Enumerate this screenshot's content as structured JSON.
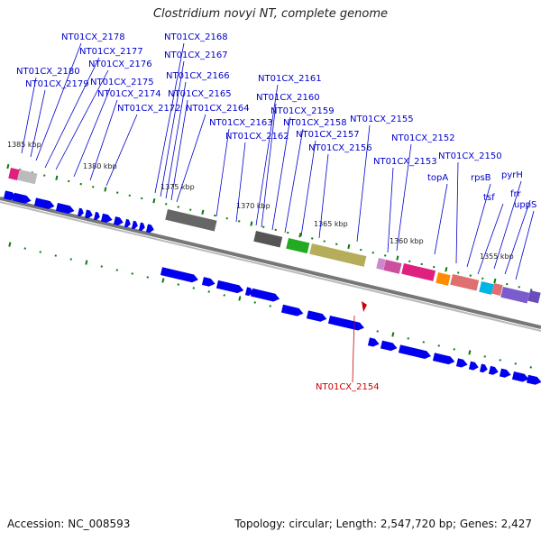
{
  "title": "Clostridium novyi NT, complete genome",
  "footer": {
    "accession": "Accession: NC_008593",
    "summary": "Topology: circular; Length: 2,547,720 bp; Genes: 2,427"
  },
  "colors": {
    "label": "#0000cc",
    "highlight": "#cc0000",
    "cds": "#0000ee",
    "backbone": "#777777",
    "tick": "#0a7a0a"
  },
  "scale_labels": [
    "1385 kbp",
    "1380 kbp",
    "1375 kbp",
    "1370 kbp",
    "1365 kbp",
    "1360 kbp",
    "1355 kbp"
  ],
  "locus_labels": [
    "NT01CX_2178",
    "NT01CX_2177",
    "NT01CX_2176",
    "NT01CX_2180",
    "NT01CX_2179",
    "NT01CX_2175",
    "NT01CX_2174",
    "NT01CX_2172",
    "NT01CX_2168",
    "NT01CX_2167",
    "NT01CX_2166",
    "NT01CX_2165",
    "NT01CX_2164",
    "NT01CX_2163",
    "NT01CX_2162",
    "NT01CX_2161",
    "NT01CX_2160",
    "NT01CX_2159",
    "NT01CX_2158",
    "NT01CX_2157",
    "NT01CX_2156",
    "NT01CX_2155",
    "NT01CX_2152",
    "NT01CX_2153",
    "NT01CX_2150",
    "topA",
    "rpsB",
    "pyrH",
    "tsf",
    "frr",
    "uppS"
  ],
  "highlight_label": "NT01CX_2154"
}
